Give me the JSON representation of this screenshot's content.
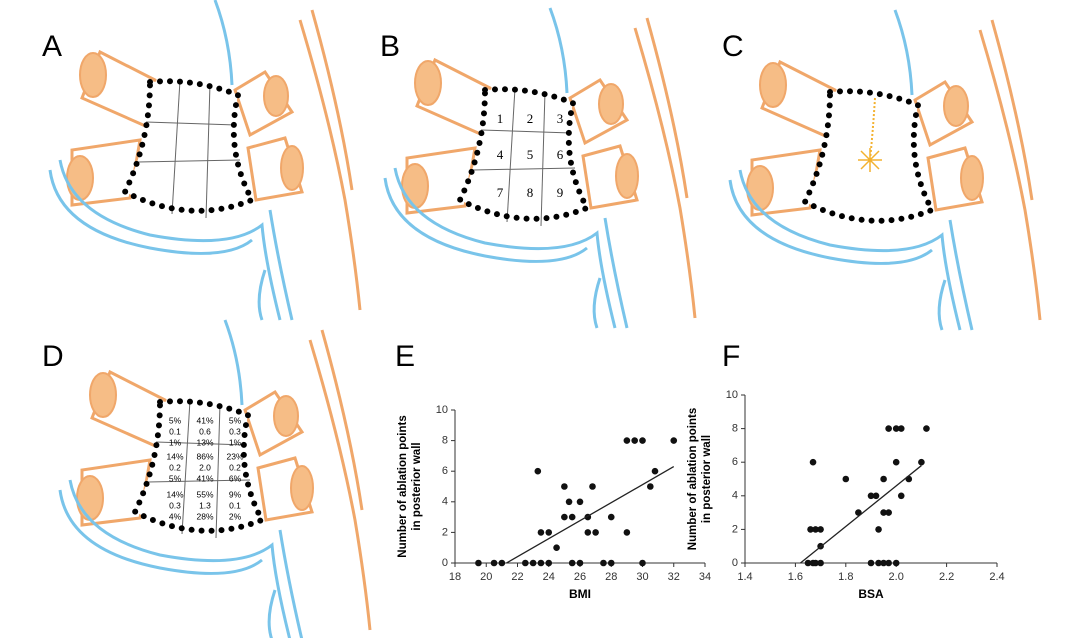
{
  "panels": {
    "labels": [
      "A",
      "B",
      "C",
      "D",
      "E",
      "F"
    ],
    "regions": [
      "1",
      "2",
      "3",
      "4",
      "5",
      "6",
      "7",
      "8",
      "9"
    ],
    "d_cells": [
      [
        "5%",
        "0.1",
        "1%"
      ],
      [
        "41%",
        "0.6",
        "13%"
      ],
      [
        "5%",
        "0.3",
        "1%"
      ],
      [
        "14%",
        "0.2",
        "5%"
      ],
      [
        "86%",
        "2.0",
        "41%"
      ],
      [
        "23%",
        "0.2",
        "6%"
      ],
      [
        "14%",
        "0.3",
        "4%"
      ],
      [
        "55%",
        "1.3",
        "28%"
      ],
      [
        "9%",
        "0.1",
        "2%"
      ]
    ]
  },
  "chart_data": [
    {
      "type": "scatter",
      "x_label": "BMI",
      "y_label": [
        "Number of ablation points",
        "in posterior wall"
      ],
      "x": [
        19.5,
        20.5,
        21,
        22.5,
        23,
        23.5,
        24,
        23.3,
        23.5,
        24,
        24.5,
        25,
        25,
        25.3,
        25.5,
        25.5,
        26,
        26,
        26.5,
        26.5,
        26.8,
        27,
        27.5,
        28,
        28,
        29,
        29,
        29.5,
        30,
        30,
        30.5,
        30.8,
        32
      ],
      "values": [
        0,
        0,
        0,
        0,
        0,
        0,
        0,
        6,
        2,
        2,
        1,
        3,
        5,
        4,
        3,
        0,
        0,
        4,
        2,
        3,
        5,
        2,
        0,
        0,
        3,
        2,
        8,
        8,
        8,
        0,
        5,
        6,
        8
      ],
      "fit": {
        "x": [
          21.3,
          32
        ],
        "values": [
          0,
          6.3
        ]
      },
      "color": "#111111",
      "xlim": [
        18,
        34
      ],
      "xticks": [
        18,
        20,
        22,
        24,
        26,
        28,
        30,
        32,
        34
      ],
      "ylim": [
        0,
        10
      ],
      "yticks": [
        0,
        2,
        4,
        6,
        8,
        10
      ]
    },
    {
      "type": "scatter",
      "x_label": "BSA",
      "y_label": [
        "Number of ablation points",
        "in posterior wall"
      ],
      "x": [
        1.65,
        1.67,
        1.68,
        1.7,
        1.66,
        1.68,
        1.7,
        1.67,
        1.7,
        1.8,
        1.85,
        1.9,
        1.92,
        1.9,
        1.93,
        1.95,
        1.93,
        1.95,
        1.97,
        1.95,
        1.97,
        2.0,
        2.0,
        2.02,
        2.0,
        2.02,
        2.05,
        2.1,
        2.12,
        1.97
      ],
      "values": [
        0,
        0,
        0,
        0,
        2,
        2,
        2,
        6,
        1,
        5,
        3,
        4,
        4,
        0,
        0,
        0,
        2,
        3,
        3,
        5,
        8,
        8,
        6,
        8,
        0,
        4,
        5,
        6,
        8,
        0
      ],
      "fit": {
        "x": [
          1.62,
          2.1
        ],
        "values": [
          0,
          5.8
        ]
      },
      "color": "#111111",
      "xlim": [
        1.4,
        2.4
      ],
      "xticks": [
        1.4,
        1.6,
        1.8,
        {
          "value": 2,
          "label": "2.0"
        },
        2.2,
        2.4
      ],
      "ylim": [
        0,
        10
      ],
      "yticks": [
        0,
        2,
        4,
        6,
        8,
        10
      ]
    }
  ]
}
